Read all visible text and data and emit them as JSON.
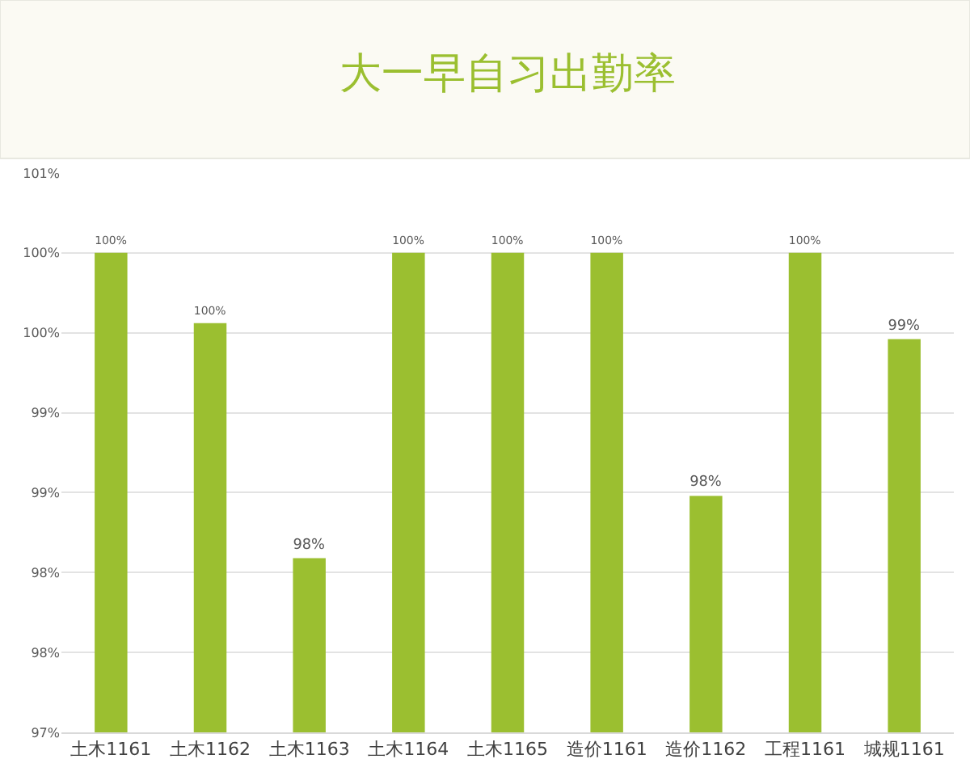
{
  "chart_data": {
    "type": "bar",
    "title": "大一早自习出勤率",
    "categories": [
      "土木1161",
      "土木1162",
      "土木1163",
      "土木1164",
      "土木1165",
      "造价1161",
      "造价1162",
      "工程1161",
      "城规1161"
    ],
    "values": [
      100,
      99.56,
      98.09,
      100,
      100,
      100,
      98.48,
      100,
      99.46
    ],
    "value_labels": [
      "100%",
      "100%",
      "98%",
      "100%",
      "100%",
      "100%",
      "98%",
      "100%",
      "99%"
    ],
    "color": "#9bbf30",
    "ylim": [
      97,
      100.5
    ],
    "yticks": [
      {
        "value": 97,
        "label": "97%"
      },
      {
        "value": 97.5,
        "label": "98%"
      },
      {
        "value": 98,
        "label": "98%"
      },
      {
        "value": 98.5,
        "label": "99%"
      },
      {
        "value": 99,
        "label": "99%"
      },
      {
        "value": 99.5,
        "label": "100%"
      },
      {
        "value": 100,
        "label": "100%"
      },
      {
        "value": 100.5,
        "label": "101%"
      }
    ],
    "grid": "y"
  }
}
